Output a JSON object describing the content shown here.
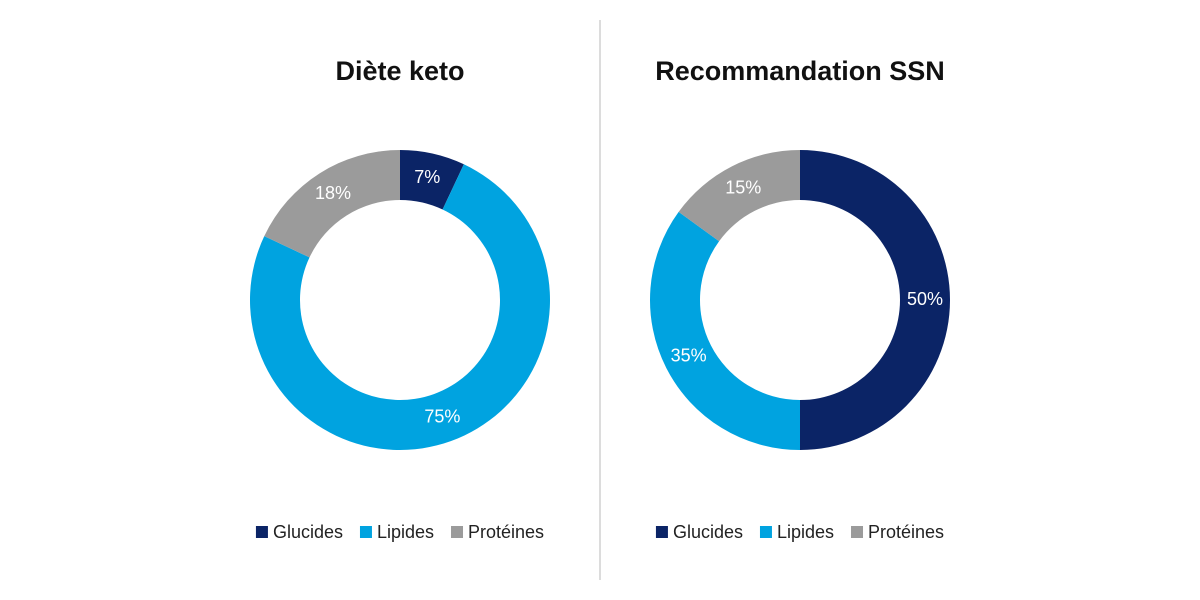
{
  "chart_data": [
    {
      "type": "donut",
      "title": "Diète keto",
      "categories": [
        "Glucides",
        "Lipides",
        "Protéines"
      ],
      "values": [
        7,
        75,
        18
      ],
      "value_labels": [
        "7%",
        "75%",
        "18%"
      ],
      "colors": [
        "#0b2466",
        "#00a3e0",
        "#9b9b9b"
      ],
      "legend": "bottom"
    },
    {
      "type": "donut",
      "title": "Recommandation SSN",
      "categories": [
        "Glucides",
        "Lipides",
        "Protéines"
      ],
      "values": [
        50,
        35,
        15
      ],
      "value_labels": [
        "50%",
        "35%",
        "15%"
      ],
      "colors": [
        "#0b2466",
        "#00a3e0",
        "#9b9b9b"
      ],
      "legend": "bottom"
    }
  ]
}
